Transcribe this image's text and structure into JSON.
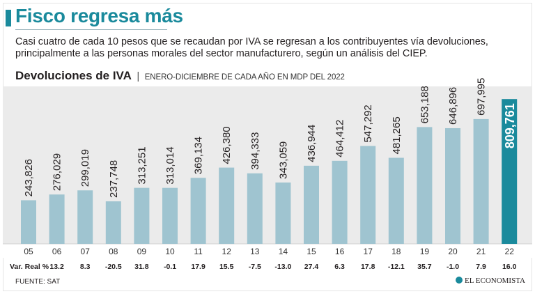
{
  "header": {
    "title": "Fisco regresa más",
    "subtitle": "Casi cuatro de cada 10 pesos que se recaudan por IVA se regresan a los contribuyentes vía devoluciones, principalmente a las personas morales del sector manufacturero, según un análisis del CIEP."
  },
  "chart_data": {
    "type": "bar",
    "title": "Devoluciones de IVA",
    "units_label": "ENERO-DICIEMBRE DE CADA AÑO EN MDP DEL 2022",
    "categories": [
      "05",
      "06",
      "07",
      "08",
      "09",
      "10",
      "11",
      "12",
      "13",
      "14",
      "15",
      "16",
      "17",
      "18",
      "19",
      "20",
      "21",
      "22"
    ],
    "values": [
      243826,
      276029,
      299019,
      237748,
      313251,
      313014,
      369134,
      426380,
      394333,
      343059,
      436944,
      464412,
      547292,
      481265,
      653188,
      646896,
      697995,
      809761
    ],
    "value_labels": [
      "243,826",
      "276,029",
      "299,019",
      "237,748",
      "313,251",
      "313,014",
      "369,134",
      "426,380",
      "394,333",
      "343,059",
      "436,944",
      "464,412",
      "547,292",
      "481,265",
      "653,188",
      "646,896",
      "697,995",
      "809,761"
    ],
    "highlight_index": 17,
    "var_label": "Var. Real %",
    "var_real": [
      "13.2",
      "8.3",
      "-20.5",
      "31.8",
      "-0.1",
      "17.9",
      "15.5",
      "-7.5",
      "-13.0",
      "27.4",
      "6.3",
      "17.8",
      "-12.1",
      "35.7",
      "-1.0",
      "7.9",
      "16.0"
    ],
    "colors": {
      "bar": "#9fc4d0",
      "highlight": "#1a8a9c",
      "highlight_text": "#ffffff",
      "background": "#ebebeb"
    },
    "ylim": [
      0,
      830000
    ]
  },
  "footer": {
    "source": "FUENTE: SAT",
    "brand": "EL ECONOMISTA"
  }
}
